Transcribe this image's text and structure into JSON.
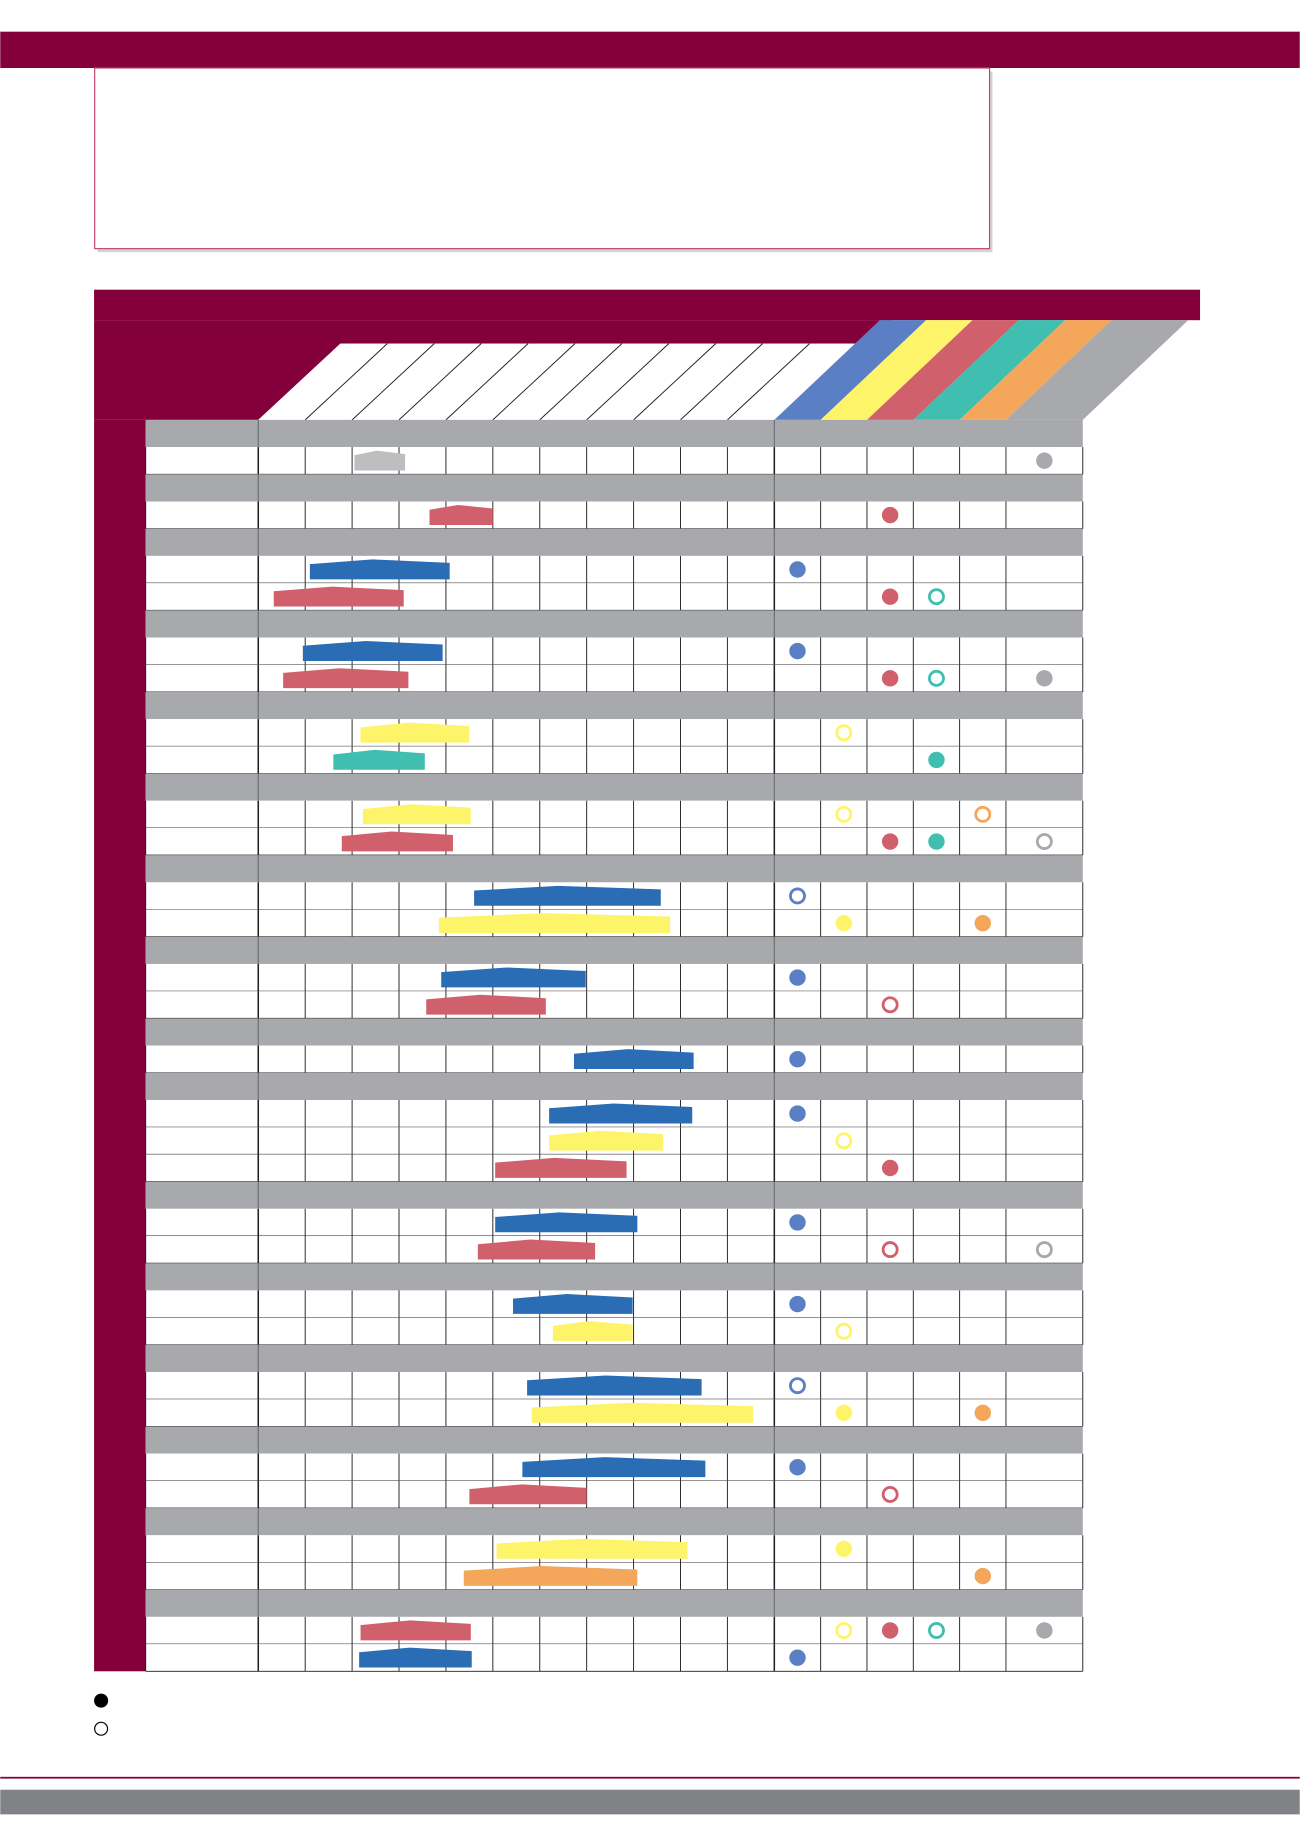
{
  "schedule": {
    "columns": 11,
    "categories": [
      {
        "color": "#5b7fc4"
      },
      {
        "color": "#fef46a"
      },
      {
        "color": "#d0606c"
      },
      {
        "color": "#40bfb0"
      },
      {
        "color": "#f4a65a"
      },
      {
        "color": "#a7a9ac"
      }
    ],
    "groups": [
      [
        {
          "bar": {
            "color": "#bcbec0",
            "start": 2.05,
            "end": 3.13
          },
          "filled": [
            5
          ],
          "open": []
        }
      ],
      [
        {
          "bar": {
            "color": "#d0606c",
            "start": 3.65,
            "end": 5.0
          },
          "filled": [
            2
          ],
          "open": []
        }
      ],
      [
        {
          "bar": {
            "color": "#2a6db5",
            "start": 1.1,
            "end": 4.08
          },
          "filled": [
            0
          ],
          "open": []
        },
        {
          "bar": {
            "color": "#d0606c",
            "start": 0.33,
            "end": 3.1
          },
          "filled": [
            2
          ],
          "open": [
            3
          ]
        }
      ],
      [
        {
          "bar": {
            "color": "#2a6db5",
            "start": 0.95,
            "end": 3.93
          },
          "filled": [
            0
          ],
          "open": []
        },
        {
          "bar": {
            "color": "#d0606c",
            "start": 0.53,
            "end": 3.2
          },
          "filled": [
            2,
            5
          ],
          "open": [
            3
          ]
        }
      ],
      [
        {
          "bar": {
            "color": "#fef46a",
            "start": 2.18,
            "end": 4.5
          },
          "filled": [],
          "open": [
            1
          ]
        },
        {
          "bar": {
            "color": "#40bfb0",
            "start": 1.6,
            "end": 3.55
          },
          "filled": [
            3
          ],
          "open": []
        }
      ],
      [
        {
          "bar": {
            "color": "#fef46a",
            "start": 2.23,
            "end": 4.53
          },
          "filled": [],
          "open": [
            1,
            4
          ]
        },
        {
          "bar": {
            "color": "#d0606c",
            "start": 1.78,
            "end": 4.15
          },
          "filled": [
            2,
            3
          ],
          "open": [
            5
          ]
        }
      ],
      [
        {
          "bar": {
            "color": "#2a6db5",
            "start": 4.6,
            "end": 8.58
          },
          "filled": [],
          "open": [
            0
          ]
        },
        {
          "bar": {
            "color": "#fef46a",
            "start": 3.85,
            "end": 8.78
          },
          "filled": [
            1,
            4
          ],
          "open": []
        }
      ],
      [
        {
          "bar": {
            "color": "#2a6db5",
            "start": 3.9,
            "end": 6.98
          },
          "filled": [
            0
          ],
          "open": []
        },
        {
          "bar": {
            "color": "#d0606c",
            "start": 3.58,
            "end": 6.13
          },
          "filled": [],
          "open": [
            2
          ]
        }
      ],
      [
        {
          "bar": {
            "color": "#2a6db5",
            "start": 6.73,
            "end": 9.28
          },
          "filled": [
            0
          ],
          "open": []
        }
      ],
      [
        {
          "bar": {
            "color": "#2a6db5",
            "start": 6.2,
            "end": 9.25
          },
          "filled": [
            0
          ],
          "open": []
        },
        {
          "bar": {
            "color": "#fef46a",
            "start": 6.2,
            "end": 8.63
          },
          "filled": [],
          "open": [
            1
          ]
        },
        {
          "bar": {
            "color": "#d0606c",
            "start": 5.05,
            "end": 7.85
          },
          "filled": [
            2
          ],
          "open": []
        }
      ],
      [
        {
          "bar": {
            "color": "#2a6db5",
            "start": 5.05,
            "end": 8.08
          },
          "filled": [
            0
          ],
          "open": []
        },
        {
          "bar": {
            "color": "#d0606c",
            "start": 4.68,
            "end": 7.18
          },
          "filled": [],
          "open": [
            2,
            5
          ]
        }
      ],
      [
        {
          "bar": {
            "color": "#2a6db5",
            "start": 5.43,
            "end": 7.98
          },
          "filled": [
            0
          ],
          "open": []
        },
        {
          "bar": {
            "color": "#fef46a",
            "start": 6.28,
            "end": 7.98
          },
          "filled": [],
          "open": [
            1
          ]
        }
      ],
      [
        {
          "bar": {
            "color": "#2a6db5",
            "start": 5.73,
            "end": 9.45
          },
          "filled": [],
          "open": [
            0
          ]
        },
        {
          "bar": {
            "color": "#fef46a",
            "start": 5.83,
            "end": 10.55
          },
          "filled": [
            1,
            4
          ],
          "open": []
        }
      ],
      [
        {
          "bar": {
            "color": "#2a6db5",
            "start": 5.63,
            "end": 9.53
          },
          "filled": [
            0
          ],
          "open": []
        },
        {
          "bar": {
            "color": "#d0606c",
            "start": 4.5,
            "end": 7.0
          },
          "filled": [],
          "open": [
            2
          ]
        }
      ],
      [
        {
          "bar": {
            "color": "#fef46a",
            "start": 5.08,
            "end": 9.15
          },
          "filled": [
            1
          ],
          "open": []
        },
        {
          "bar": {
            "color": "#f4a65a",
            "start": 4.38,
            "end": 8.08
          },
          "filled": [
            4
          ],
          "open": []
        }
      ],
      [
        {
          "bar": {
            "color": "#d0606c",
            "start": 2.18,
            "end": 4.53
          },
          "filled": [
            2,
            5
          ],
          "open": [
            1,
            3
          ]
        },
        {
          "bar": {
            "color": "#2a6db5",
            "start": 2.15,
            "end": 4.55
          },
          "filled": [
            0
          ],
          "open": []
        }
      ]
    ]
  }
}
